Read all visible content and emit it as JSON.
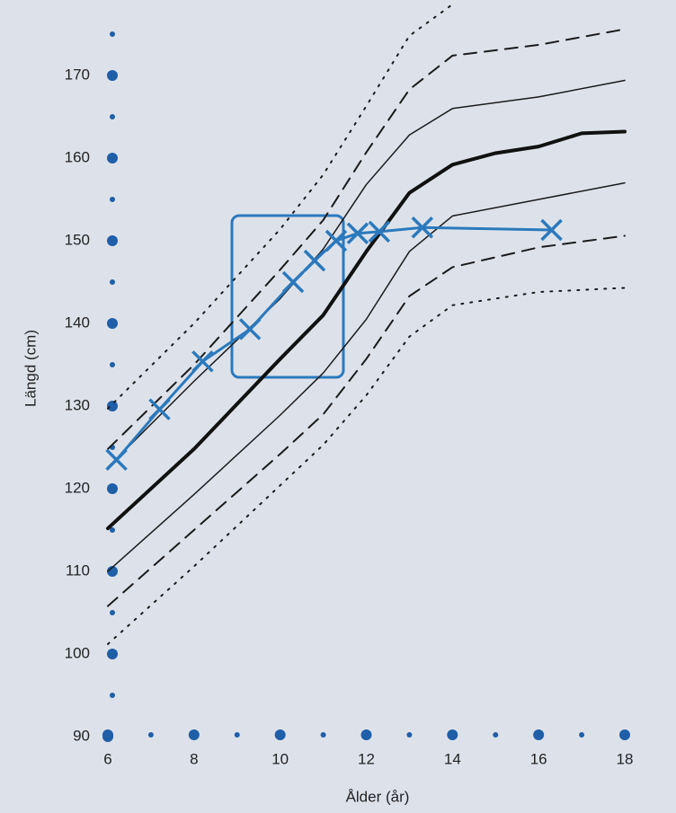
{
  "chart_data": {
    "type": "line",
    "xlabel": "Ålder (år)",
    "ylabel": "Längd (cm)",
    "xlim": [
      6,
      18
    ],
    "ylim": [
      90,
      179
    ],
    "xticks": [
      6,
      8,
      10,
      12,
      14,
      16,
      18
    ],
    "yticks": [
      90,
      100,
      110,
      120,
      130,
      140,
      150,
      160,
      170
    ],
    "xminor": [
      7,
      9,
      11,
      13,
      15,
      17
    ],
    "yminor": [
      95,
      105,
      115,
      125,
      135,
      145,
      155,
      165,
      175
    ],
    "axis_color": "#1f5fa8",
    "series": [
      {
        "color": "#1a1a1a",
        "style": "dotted",
        "width": 2,
        "x": [
          6,
          8,
          10,
          11,
          12,
          13,
          14
        ],
        "values": [
          129.7,
          140,
          151.4,
          158,
          166.3,
          174.8,
          178.6
        ]
      },
      {
        "color": "#1a1a1a",
        "style": "dashed",
        "width": 2,
        "x": [
          6,
          8,
          10,
          11,
          12,
          13,
          14,
          16,
          18
        ],
        "values": [
          124.8,
          135,
          146.5,
          152.5,
          160.7,
          168.3,
          172.4,
          173.7,
          175.6
        ]
      },
      {
        "color": "#1a1a1a",
        "style": "solid",
        "width": 1.5,
        "x": [
          6,
          8,
          10,
          11,
          12,
          13,
          14,
          16,
          18
        ],
        "values": [
          122.6,
          133,
          143,
          149,
          156.8,
          162.8,
          166,
          167.4,
          169.4
        ]
      },
      {
        "color": "#111111",
        "style": "solid",
        "width": 4,
        "x": [
          6,
          8,
          10,
          11,
          12,
          13,
          14,
          15,
          16,
          17,
          18
        ],
        "values": [
          115.2,
          124.8,
          135.7,
          141,
          148.7,
          155.8,
          159.2,
          160.6,
          161.4,
          163,
          163.2
        ]
      },
      {
        "color": "#1a1a1a",
        "style": "solid",
        "width": 1.5,
        "x": [
          6,
          8,
          10,
          11,
          12,
          13,
          14,
          16,
          18
        ],
        "values": [
          110,
          119.3,
          128.9,
          134,
          140.5,
          148.7,
          153,
          155,
          157
        ]
      },
      {
        "color": "#1a1a1a",
        "style": "dashed",
        "width": 2,
        "x": [
          6,
          8,
          10,
          11,
          12,
          13,
          14,
          16,
          18
        ],
        "values": [
          105.8,
          115,
          124.2,
          129,
          135.7,
          143.3,
          146.8,
          149.2,
          150.6
        ]
      },
      {
        "color": "#1a1a1a",
        "style": "dotted",
        "width": 2,
        "x": [
          6,
          8,
          10,
          11,
          12,
          13,
          14,
          16,
          18
        ],
        "values": [
          101.2,
          110.6,
          120.4,
          125.3,
          131.3,
          138.4,
          142.2,
          143.8,
          144.3
        ]
      },
      {
        "color": "#2b79bd",
        "style": "solid",
        "width": 3,
        "marker": "x",
        "x": [
          6.2,
          7.2,
          8.2,
          9.3,
          10.3,
          10.8,
          11.3,
          11.8,
          12.3,
          13.3,
          16.3
        ],
        "values": [
          123.5,
          129.6,
          135.4,
          139.3,
          145,
          147.6,
          150,
          150.9,
          151.1,
          151.6,
          151.3
        ]
      }
    ]
  }
}
